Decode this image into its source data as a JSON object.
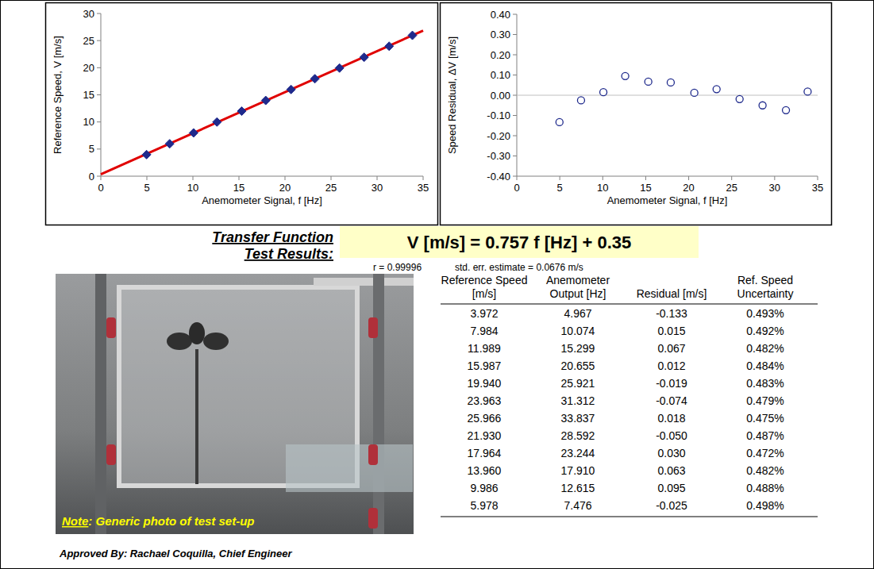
{
  "chart_data": [
    {
      "type": "scatter",
      "x_label": "Anemometer Signal, f [Hz]",
      "y_label": "Reference Speed, V [m/s]",
      "xlim": [
        0,
        35
      ],
      "xticks": [
        0,
        5,
        10,
        15,
        20,
        25,
        30,
        35
      ],
      "ylim": [
        0,
        30
      ],
      "yticks": [
        0,
        5,
        10,
        15,
        20,
        25,
        30
      ],
      "grid": false,
      "series": [
        {
          "type": "scatter",
          "color": "#1f2a8c",
          "marker": "diamond",
          "x": [
            4.967,
            10.074,
            15.299,
            20.655,
            25.921,
            31.312,
            33.837,
            28.592,
            23.244,
            17.91,
            12.615,
            7.476
          ],
          "values": [
            3.972,
            7.984,
            11.989,
            15.987,
            19.94,
            23.963,
            25.966,
            21.93,
            17.964,
            13.96,
            9.986,
            5.978
          ]
        },
        {
          "type": "line",
          "color": "#e00000",
          "line_style": "solid",
          "x": [
            0,
            35
          ],
          "values": [
            0.35,
            26.85
          ]
        }
      ]
    },
    {
      "type": "scatter",
      "x_label": "Anemometer Signal, f [Hz]",
      "y_label": "Speed Residual, ΔV [m/s]",
      "xlim": [
        0,
        35
      ],
      "xticks": [
        0,
        5,
        10,
        15,
        20,
        25,
        30,
        35
      ],
      "ylim": [
        -0.4,
        0.4
      ],
      "yticks": [
        {
          "value": 0.4,
          "label": "0.40"
        },
        {
          "value": 0.3,
          "label": "0.30"
        },
        {
          "value": 0.2,
          "label": "0.20"
        },
        {
          "value": 0.1,
          "label": "0.10"
        },
        {
          "value": 0,
          "label": "0.00"
        },
        {
          "value": -0.1,
          "label": "-0.10"
        },
        {
          "value": -0.2,
          "label": "-0.20"
        },
        {
          "value": -0.3,
          "label": "-0.30"
        },
        {
          "value": -0.4,
          "label": "-0.40"
        }
      ],
      "grid": false,
      "series": [
        {
          "type": "scatter",
          "color": "#1f2a8c",
          "marker": "open-circle",
          "x": [
            4.967,
            10.074,
            15.299,
            20.655,
            25.921,
            31.312,
            33.837,
            28.592,
            23.244,
            17.91,
            12.615,
            7.476
          ],
          "values": [
            -0.133,
            0.015,
            0.067,
            0.012,
            -0.019,
            -0.074,
            0.018,
            -0.05,
            0.03,
            0.063,
            0.095,
            -0.025
          ]
        }
      ]
    }
  ],
  "transfer_function": {
    "label": "Transfer Function",
    "equation": "V [m/s] = 0.757 f [Hz] + 0.35",
    "r": "r = 0.99996",
    "std_err": "std. err. estimate = 0.0676 m/s"
  },
  "test_results_label": "Test Results:",
  "table": {
    "header": [
      "Reference Speed [m/s]",
      "Anemometer Output [Hz]",
      "Residual [m/s]",
      "Ref. Speed Uncertainty"
    ],
    "rows": [
      [
        "3.972",
        "4.967",
        "-0.133",
        "0.493%"
      ],
      [
        "7.984",
        "10.074",
        "0.015",
        "0.492%"
      ],
      [
        "11.989",
        "15.299",
        "0.067",
        "0.482%"
      ],
      [
        "15.987",
        "20.655",
        "0.012",
        "0.484%"
      ],
      [
        "19.940",
        "25.921",
        "-0.019",
        "0.483%"
      ],
      [
        "23.963",
        "31.312",
        "-0.074",
        "0.479%"
      ],
      [
        "25.966",
        "33.837",
        "0.018",
        "0.475%"
      ],
      [
        "21.930",
        "28.592",
        "-0.050",
        "0.487%"
      ],
      [
        "17.964",
        "23.244",
        "0.030",
        "0.472%"
      ],
      [
        "13.960",
        "17.910",
        "0.063",
        "0.482%"
      ],
      [
        "9.986",
        "12.615",
        "0.095",
        "0.488%"
      ],
      [
        "5.978",
        "7.476",
        "-0.025",
        "0.498%"
      ]
    ]
  },
  "photo_note": {
    "prefix": "Note",
    "text": ": Generic photo of test set-up"
  },
  "approval": "Approved By: Rachael Coquilla, Chief Engineer"
}
